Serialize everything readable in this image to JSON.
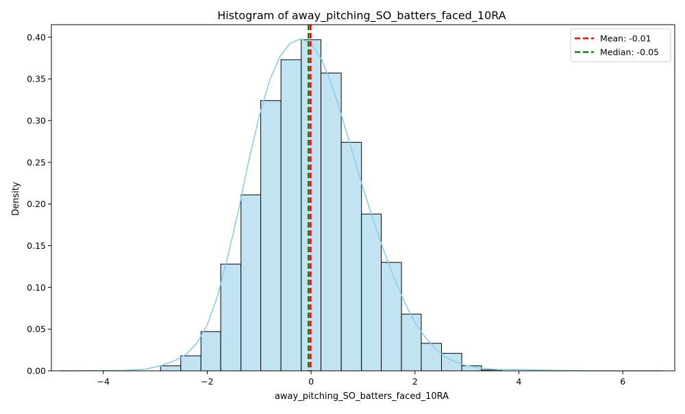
{
  "chart_data": {
    "type": "bar",
    "title": "Histogram of away_pitching_SO_batters_faced_10RA",
    "xlabel": "away_pitching_SO_batters_faced_10RA",
    "ylabel": "Density",
    "xlim": [
      -5.0,
      7.0
    ],
    "ylim": [
      0,
      0.415
    ],
    "grid": false,
    "legend_position": "top-right",
    "x_ticks": [
      -4,
      -2,
      0,
      2,
      4,
      6
    ],
    "x_tick_labels": [
      "−4",
      "−2",
      "0",
      "2",
      "4",
      "6"
    ],
    "y_ticks": [
      0,
      0.05,
      0.1,
      0.15,
      0.2,
      0.25,
      0.3,
      0.35,
      0.4
    ],
    "y_tick_labels": [
      "0.00",
      "0.05",
      "0.10",
      "0.15",
      "0.20",
      "0.25",
      "0.30",
      "0.35",
      "0.40"
    ],
    "bin_edges": [
      -4.83,
      -4.44,
      -4.06,
      -3.67,
      -3.28,
      -2.9,
      -2.51,
      -2.12,
      -1.74,
      -1.35,
      -0.97,
      -0.58,
      -0.19,
      0.19,
      0.58,
      0.97,
      1.35,
      1.74,
      2.12,
      2.51,
      2.9,
      3.28,
      3.67,
      4.06,
      4.44,
      4.83,
      5.22,
      5.6,
      5.99,
      6.37,
      6.76
    ],
    "densities": [
      0.0,
      0.0,
      0.0,
      0.0,
      0.0,
      0.006,
      0.018,
      0.047,
      0.128,
      0.211,
      0.324,
      0.373,
      0.397,
      0.357,
      0.274,
      0.188,
      0.13,
      0.068,
      0.033,
      0.021,
      0.006,
      0.001,
      0.0,
      0.0,
      0.0,
      0.0,
      0.0,
      0.0,
      0.0,
      0.0
    ],
    "kde": {
      "x": [
        -4.83,
        -3.6,
        -3.2,
        -2.9,
        -2.6,
        -2.4,
        -2.2,
        -2.0,
        -1.8,
        -1.6,
        -1.4,
        -1.2,
        -1.0,
        -0.8,
        -0.6,
        -0.4,
        -0.2,
        0.0,
        0.2,
        0.4,
        0.6,
        0.8,
        1.0,
        1.2,
        1.4,
        1.6,
        1.8,
        2.0,
        2.2,
        2.4,
        2.6,
        2.8,
        3.0,
        3.3,
        3.6,
        4.0,
        4.3,
        4.8,
        5.5,
        6.76
      ],
      "y": [
        0.0,
        0.0005,
        0.002,
        0.006,
        0.013,
        0.02,
        0.033,
        0.055,
        0.09,
        0.138,
        0.192,
        0.252,
        0.305,
        0.348,
        0.377,
        0.393,
        0.398,
        0.392,
        0.374,
        0.343,
        0.303,
        0.261,
        0.219,
        0.18,
        0.144,
        0.111,
        0.082,
        0.058,
        0.04,
        0.026,
        0.016,
        0.01,
        0.006,
        0.003,
        0.0015,
        0.0015,
        0.001,
        0.0003,
        0.0,
        0.0
      ]
    },
    "reference_lines": [
      {
        "name": "Mean",
        "value": -0.01,
        "label": "Mean: -0.01",
        "color": "#ff0000"
      },
      {
        "name": "Median",
        "value": -0.05,
        "label": "Median: -0.05",
        "color": "#008000"
      }
    ],
    "colors": {
      "bar_fill": "#c2e4f2",
      "bar_edge": "#000000",
      "kde_line": "#87ceeb"
    }
  }
}
